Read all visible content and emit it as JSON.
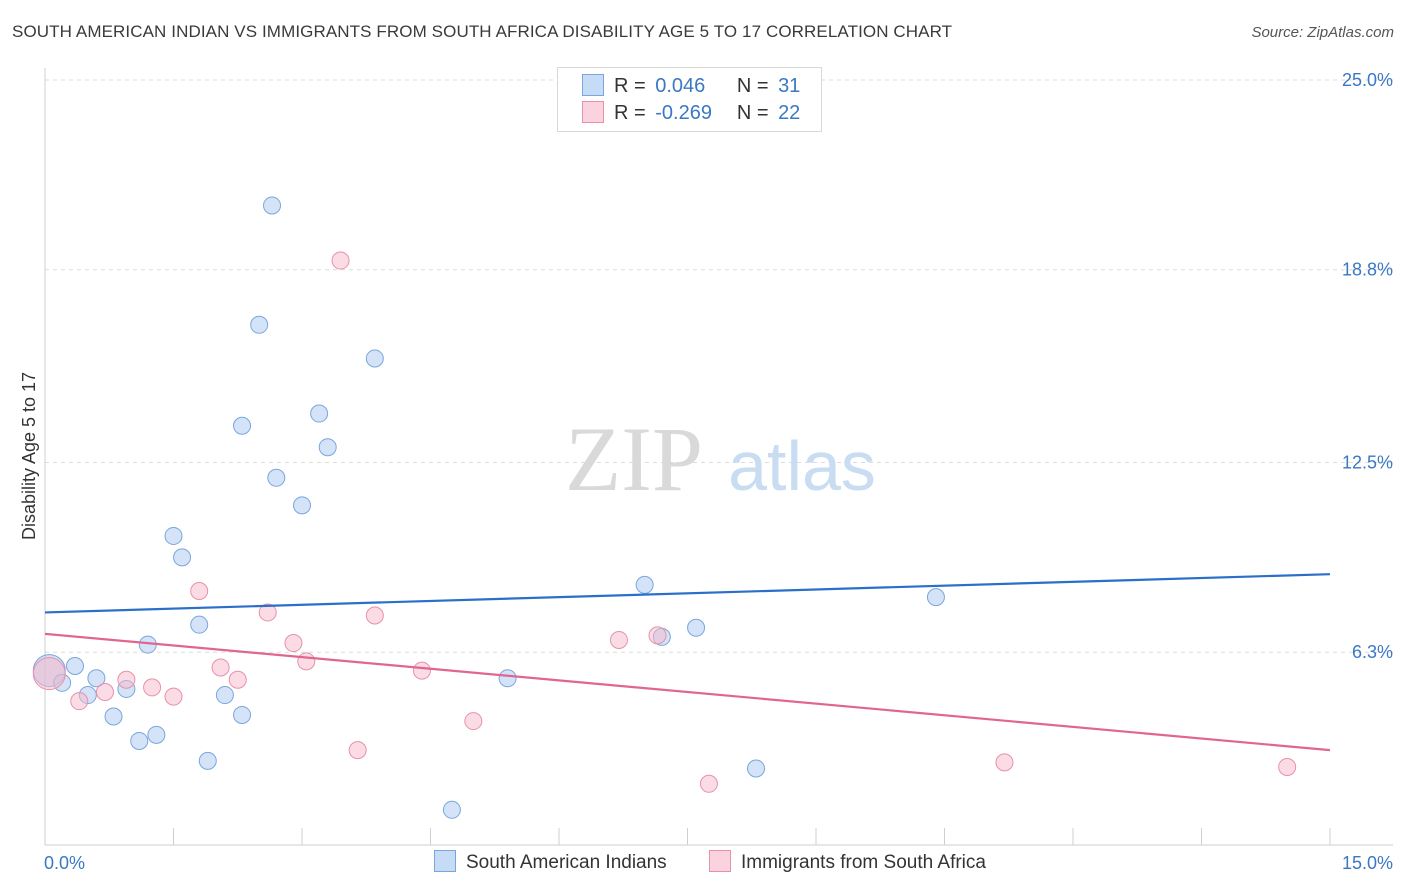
{
  "title": "SOUTH AMERICAN INDIAN VS IMMIGRANTS FROM SOUTH AFRICA DISABILITY AGE 5 TO 17 CORRELATION CHART",
  "source": "Source: ZipAtlas.com",
  "watermark": {
    "zip": "ZIP",
    "atlas": "atlas"
  },
  "legend": {
    "rows": [
      {
        "r_label": "R =",
        "r_value": "0.046",
        "n_label": "N =",
        "n_value": "31",
        "color": "#a9c8f0",
        "border": "#7aa6dc"
      },
      {
        "r_label": "R =",
        "r_value": "-0.269",
        "n_label": "N =",
        "n_value": "22",
        "color": "#f7b9cc",
        "border": "#e890ab"
      }
    ]
  },
  "bottom_legend": [
    {
      "label": "South American Indians",
      "color": "#a9c8f0",
      "border": "#7aa6dc"
    },
    {
      "label": "Immigrants from South Africa",
      "color": "#f7b9cc",
      "border": "#e890ab"
    }
  ],
  "chart_data": {
    "type": "scatter",
    "xlabel": "",
    "ylabel": "Disability Age 5 to 17",
    "xlim": [
      0.0,
      15.0
    ],
    "ylim": [
      0.0,
      25.0
    ],
    "x_tick_labels": [
      "0.0%",
      "15.0%"
    ],
    "y_tick_values": [
      6.3,
      12.5,
      18.8,
      25.0
    ],
    "y_tick_labels": [
      "6.3%",
      "12.5%",
      "18.8%",
      "25.0%"
    ],
    "grid": true,
    "series": [
      {
        "name": "South American Indians",
        "color": "#a9c8f0",
        "stroke": "#7aa6dc",
        "line_color": "#2a6fc9",
        "trend": {
          "x": [
            0.0,
            15.0
          ],
          "y": [
            7.6,
            8.85
          ]
        },
        "points": [
          [
            0.05,
            5.7
          ],
          [
            0.2,
            5.3
          ],
          [
            0.35,
            5.85
          ],
          [
            0.5,
            4.9
          ],
          [
            0.6,
            5.45
          ],
          [
            0.8,
            4.2
          ],
          [
            0.95,
            5.1
          ],
          [
            1.1,
            3.4
          ],
          [
            1.3,
            3.6
          ],
          [
            1.2,
            6.55
          ],
          [
            1.5,
            10.1
          ],
          [
            1.6,
            9.4
          ],
          [
            1.8,
            7.2
          ],
          [
            1.9,
            2.75
          ],
          [
            2.1,
            4.9
          ],
          [
            2.3,
            4.25
          ],
          [
            2.3,
            13.7
          ],
          [
            2.5,
            17.0
          ],
          [
            2.65,
            20.9
          ],
          [
            2.7,
            12.0
          ],
          [
            3.0,
            11.1
          ],
          [
            3.2,
            14.1
          ],
          [
            3.3,
            13.0
          ],
          [
            3.85,
            15.9
          ],
          [
            4.75,
            1.15
          ],
          [
            5.4,
            5.45
          ],
          [
            7.0,
            8.5
          ],
          [
            7.2,
            6.8
          ],
          [
            7.6,
            7.1
          ],
          [
            8.3,
            2.5
          ],
          [
            10.4,
            8.1
          ]
        ]
      },
      {
        "name": "Immigrants from South Africa",
        "color": "#f7b9cc",
        "stroke": "#e890ab",
        "line_color": "#e0668f",
        "trend": {
          "x": [
            0.0,
            15.0
          ],
          "y": [
            6.9,
            3.1
          ]
        },
        "points": [
          [
            0.05,
            5.6
          ],
          [
            0.4,
            4.7
          ],
          [
            0.7,
            5.0
          ],
          [
            0.95,
            5.4
          ],
          [
            1.25,
            5.15
          ],
          [
            1.5,
            4.85
          ],
          [
            1.8,
            8.3
          ],
          [
            2.05,
            5.8
          ],
          [
            2.25,
            5.4
          ],
          [
            2.6,
            7.6
          ],
          [
            2.9,
            6.6
          ],
          [
            3.05,
            6.0
          ],
          [
            3.45,
            19.1
          ],
          [
            3.65,
            3.1
          ],
          [
            3.85,
            7.5
          ],
          [
            4.4,
            5.7
          ],
          [
            5.0,
            4.05
          ],
          [
            6.7,
            6.7
          ],
          [
            7.15,
            6.85
          ],
          [
            7.75,
            2.0
          ],
          [
            11.2,
            2.7
          ],
          [
            14.5,
            2.55
          ]
        ]
      }
    ]
  }
}
